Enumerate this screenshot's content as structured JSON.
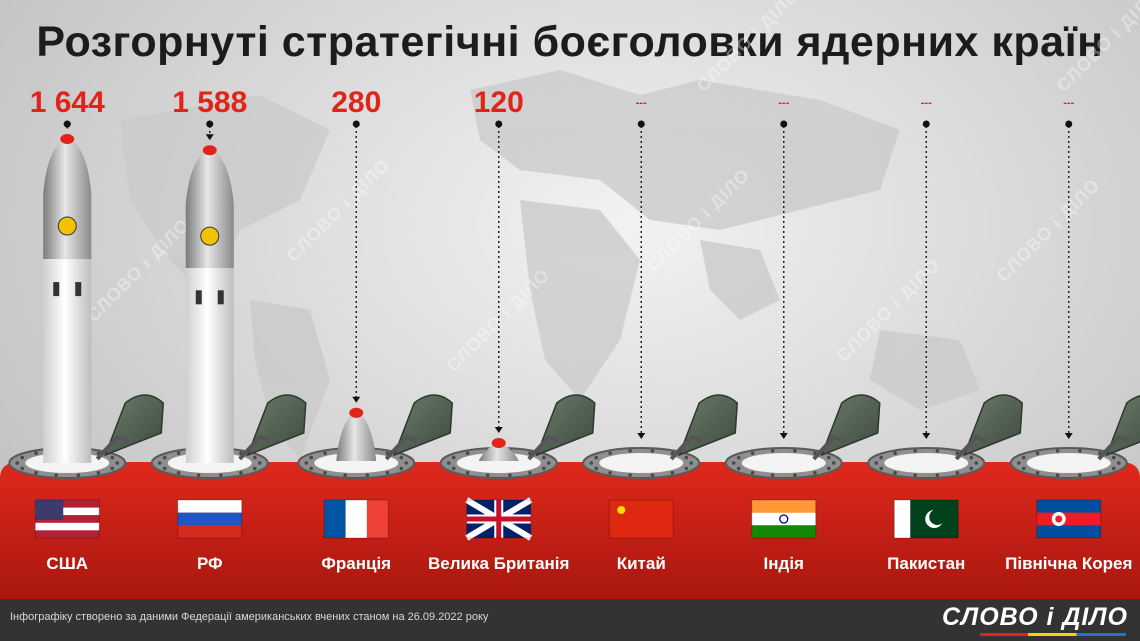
{
  "title": "Розгорнуті стратегічні боєголовки ядерних країн",
  "footer": {
    "note": "Інфографіку створено за даними Федерації американських вчених станом на 26.09.2022 року",
    "logo": "СЛОВО і ДІЛО"
  },
  "watermark": "СЛОВО і ДІЛО",
  "colors": {
    "accent": "#e2231a",
    "ground": "#c8231a",
    "background": "#d9d9d9"
  },
  "chart_data": {
    "type": "bar",
    "title": "Розгорнуті стратегічні боєголовки ядерних країн",
    "categories": [
      "США",
      "РФ",
      "Франція",
      "Велика Британія",
      "Китай",
      "Індія",
      "Пакистан",
      "Північна Корея"
    ],
    "values": [
      1644,
      1588,
      280,
      120,
      null,
      null,
      null,
      null
    ],
    "value_labels": [
      "1 644",
      "1 588",
      "280",
      "120",
      "---",
      "---",
      "---",
      "---"
    ],
    "flags": [
      "usa",
      "russia",
      "france",
      "uk",
      "china",
      "india",
      "pakistan",
      "north-korea"
    ]
  }
}
